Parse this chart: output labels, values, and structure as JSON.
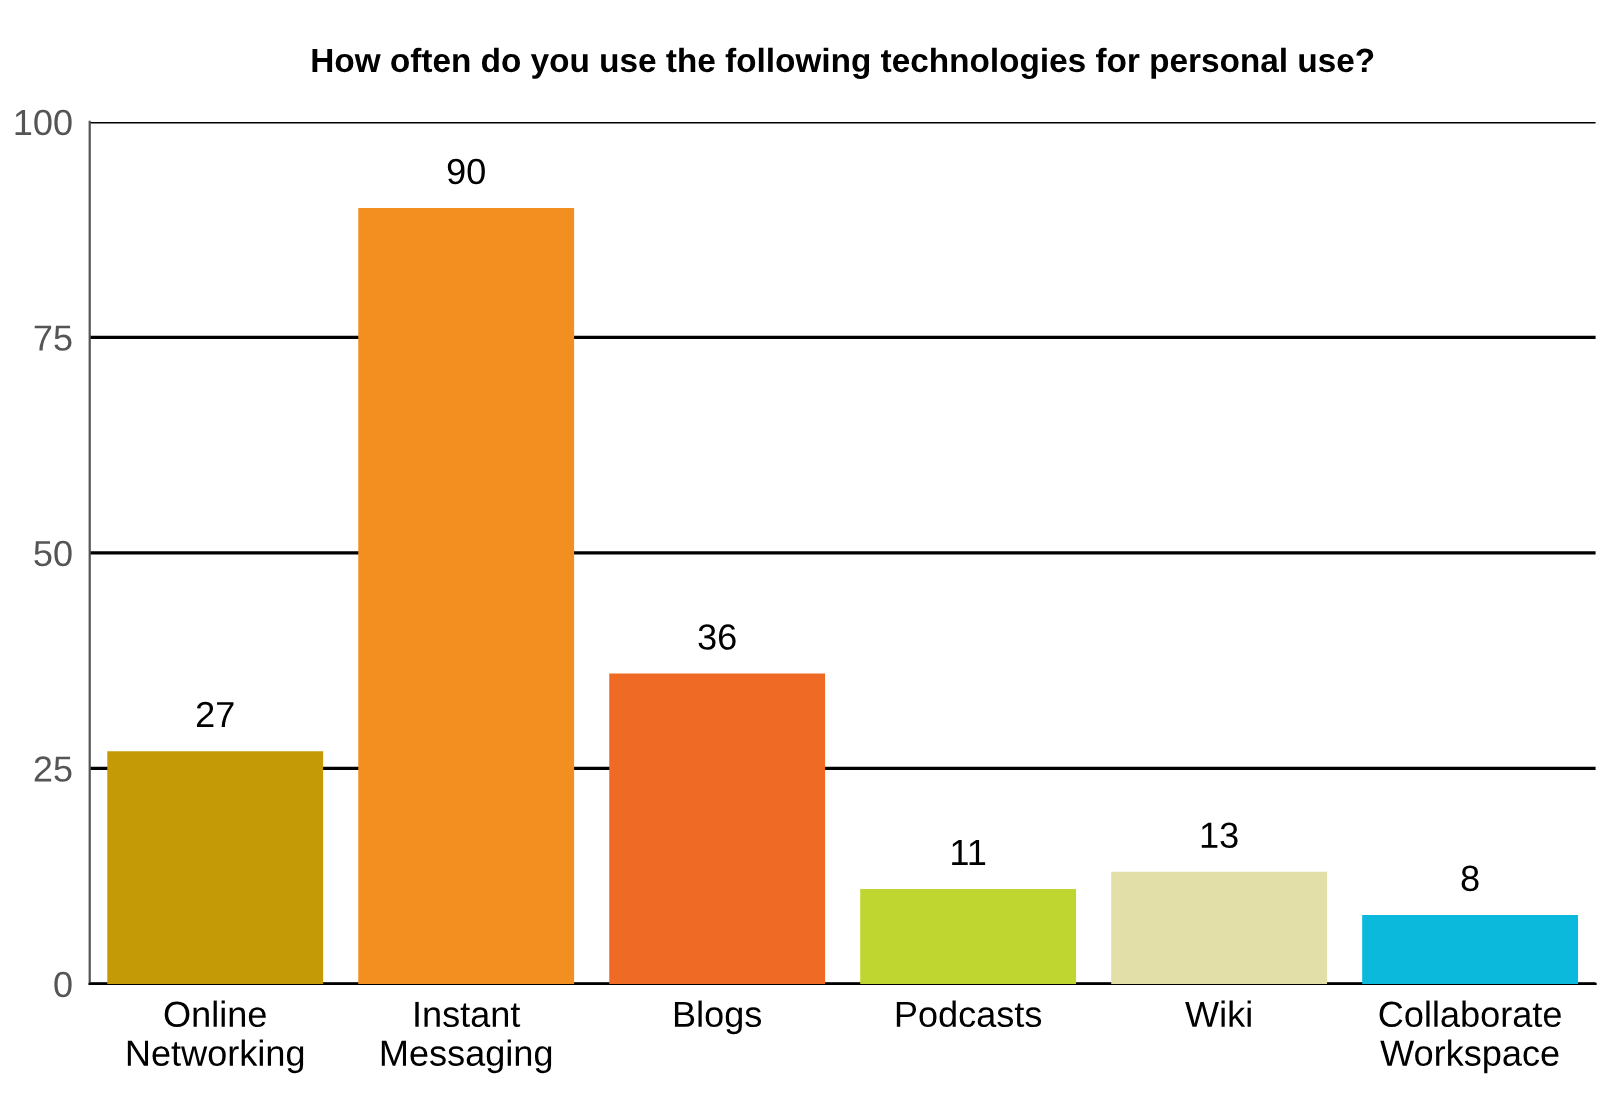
{
  "chart_data": {
    "type": "bar",
    "title": "How often do you use the following technologies for personal use?",
    "categories": [
      "Online\nNetworking",
      "Instant\nMessaging",
      "Blogs",
      "Podcasts",
      "Wiki",
      "Collaborate\nWorkspace"
    ],
    "values": [
      27,
      90,
      36,
      11,
      13,
      8
    ],
    "colors": [
      "#c49a06",
      "#f38f20",
      "#ef6a25",
      "#bfd630",
      "#e2e0a8",
      "#0ab9dc"
    ],
    "ylim": [
      0,
      100
    ],
    "yticks": [
      0,
      25,
      50,
      75,
      100
    ],
    "grid": "y",
    "data_labels": true
  }
}
